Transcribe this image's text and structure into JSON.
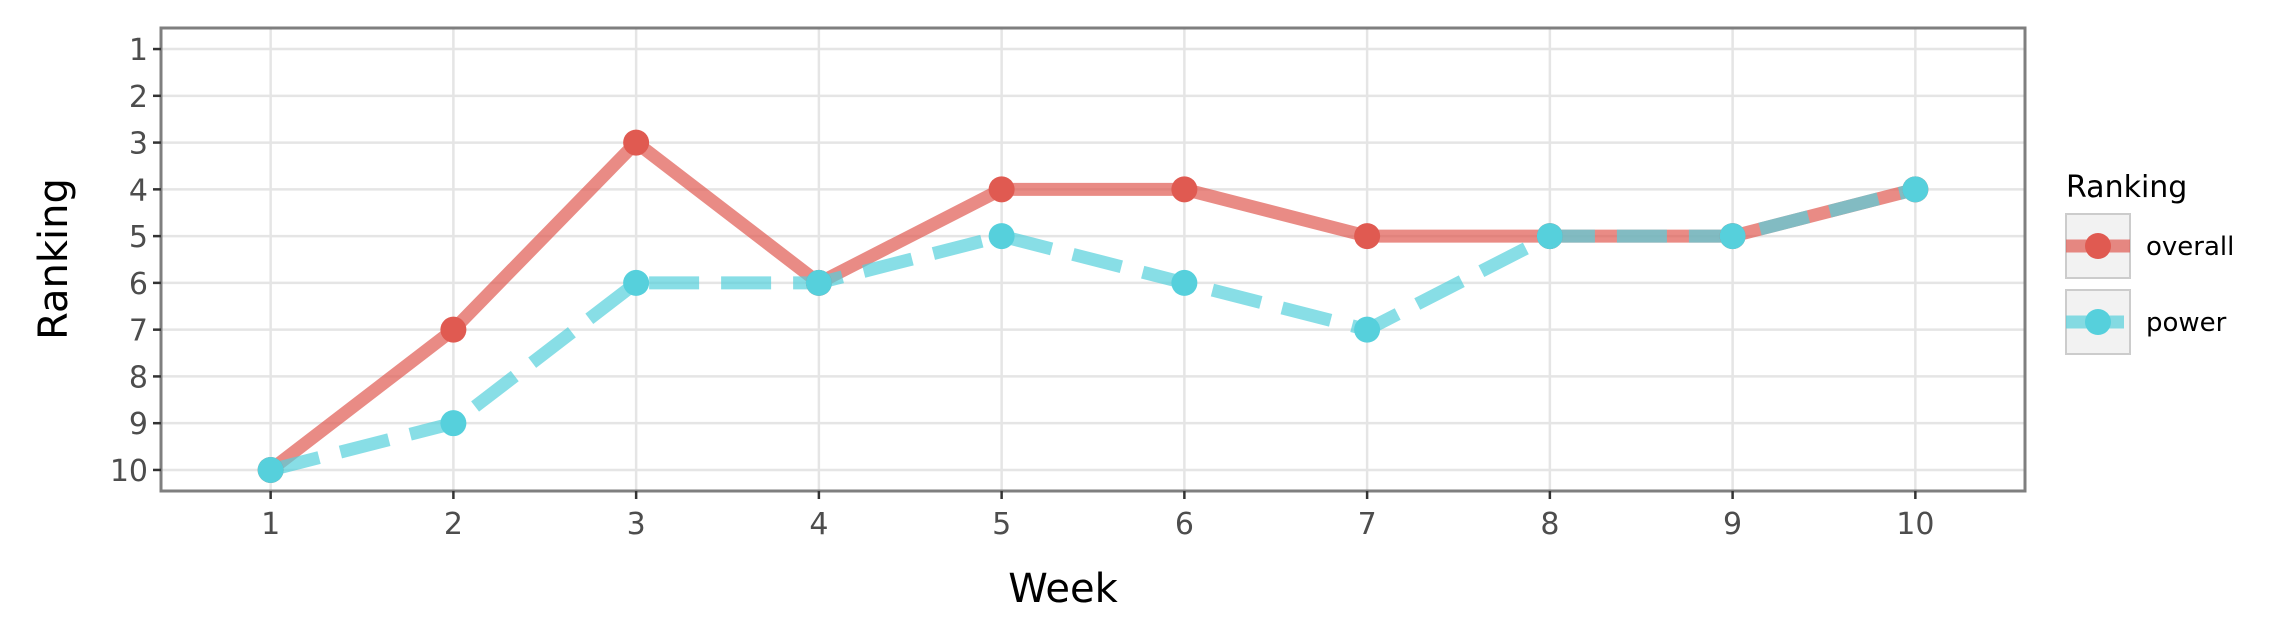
{
  "chart_data": {
    "type": "line",
    "xlabel": "Week",
    "ylabel": "Ranking",
    "x": [
      1,
      2,
      3,
      4,
      5,
      6,
      7,
      8,
      9,
      10
    ],
    "x_tick_labels": [
      "1",
      "2",
      "3",
      "4",
      "5",
      "6",
      "7",
      "8",
      "9",
      "10"
    ],
    "y_tick_labels": [
      "1",
      "2",
      "3",
      "4",
      "5",
      "6",
      "7",
      "8",
      "9",
      "10"
    ],
    "xlim": [
      0.4,
      10.6
    ],
    "ylim": [
      10.45,
      0.55
    ],
    "y_reversed": true,
    "grid": true,
    "legend": {
      "title": "Ranking",
      "position": "right"
    },
    "series": [
      {
        "name": "overall",
        "values": [
          10,
          7,
          3,
          6,
          4,
          4,
          5,
          5,
          5,
          4
        ],
        "color": "#e05a51",
        "line_style": "solid"
      },
      {
        "name": "power",
        "values": [
          10,
          9,
          6,
          6,
          5,
          6,
          7,
          5,
          5,
          4
        ],
        "color": "#56d0dc",
        "line_style": "dashed"
      }
    ]
  }
}
